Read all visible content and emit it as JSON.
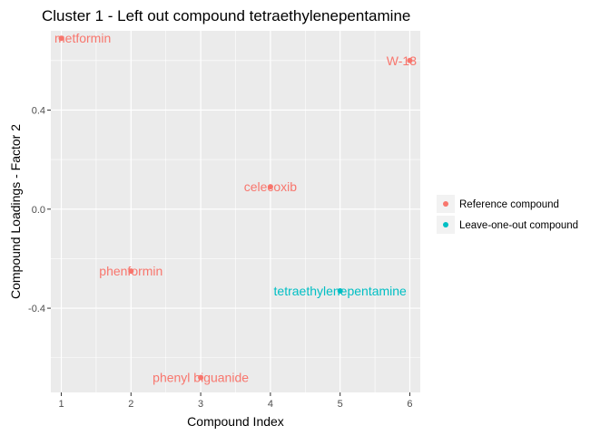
{
  "chart_data": {
    "type": "scatter",
    "title": "Cluster 1 - Left out compound tetraethylenepentamine",
    "xlabel": "Compound Index",
    "ylabel": "Compound Loadings - Factor 2",
    "xlim": [
      0.85,
      6.15
    ],
    "ylim": [
      -0.74,
      0.72
    ],
    "x_ticks": [
      1,
      2,
      3,
      4,
      5,
      6
    ],
    "y_ticks": [
      -0.4,
      0.0,
      0.4
    ],
    "y_tick_labels": [
      "-0.4",
      "0.0",
      "0.4"
    ],
    "grid": true,
    "legend_position": "right",
    "colors": {
      "Reference compound": "#F8766D",
      "Leave-one-out compound": "#00BFC4",
      "panel_background": "#EBEBEB",
      "grid": "#FFFFFF"
    },
    "series": [
      {
        "name": "Reference compound",
        "points": [
          {
            "x": 1,
            "y": 0.69,
            "label": "metformin"
          },
          {
            "x": 2,
            "y": -0.25,
            "label": "phenformin"
          },
          {
            "x": 3,
            "y": -0.68,
            "label": "phenyl biguanide"
          },
          {
            "x": 4,
            "y": 0.09,
            "label": "celecoxib"
          },
          {
            "x": 6,
            "y": 0.6,
            "label": "W-13"
          }
        ]
      },
      {
        "name": "Leave-one-out compound",
        "points": [
          {
            "x": 5,
            "y": -0.33,
            "label": "tetraethylenepentamine"
          }
        ]
      }
    ]
  }
}
